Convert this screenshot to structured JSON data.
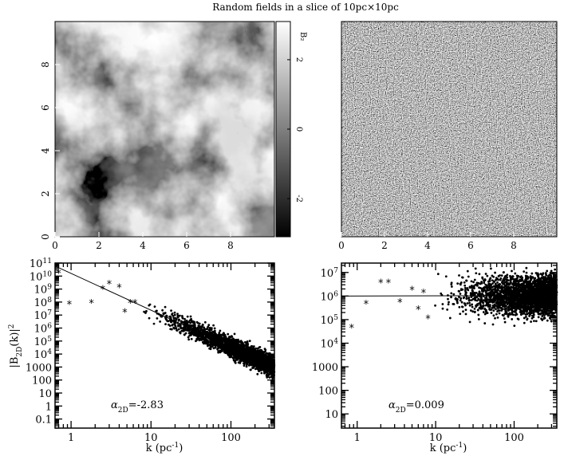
{
  "title": "Random fields in a slice of 10pc×10pc",
  "colorbar": {
    "label": "B₂",
    "ticks": [
      {
        "value": 2,
        "label": "2"
      },
      {
        "value": 0,
        "label": "0"
      },
      {
        "value": -2,
        "label": "-2"
      }
    ],
    "range": [
      -3.1,
      3.1
    ]
  },
  "chart_data": [
    {
      "type": "heatmap",
      "panel": "top-left",
      "description_of_field": "smooth large-scale grayscale random field",
      "xlim": [
        0,
        10
      ],
      "ylim": [
        0,
        10
      ],
      "xticks": [
        "0",
        "2",
        "4",
        "6",
        "8"
      ],
      "yticks": [
        "0",
        "2",
        "4",
        "6",
        "8"
      ],
      "colormap": "gray"
    },
    {
      "type": "heatmap",
      "panel": "top-right",
      "xlim": [
        0,
        10
      ],
      "ylim": [
        0,
        10
      ],
      "xticks": [
        "0",
        "2",
        "4",
        "6",
        "8"
      ],
      "colormap": "gray"
    },
    {
      "type": "scatter",
      "panel": "bottom-left",
      "xlabel": "k (pc",
      "xlabel_sup": "-1",
      "xlabel_end": ")",
      "ylabel": "|B",
      "ylabel_sub": "2D",
      "ylabel_mid": "(k)|",
      "ylabel_sup": "2",
      "xscale": "log",
      "yscale": "log",
      "xlim": [
        0.63,
        350
      ],
      "ylim": [
        0.02,
        100000000000.0
      ],
      "xticks": [
        {
          "value": 1,
          "label": "1"
        },
        {
          "value": 10,
          "label": "10"
        },
        {
          "value": 100,
          "label": "100"
        }
      ],
      "yticks": [
        {
          "value": 100000000000.0,
          "label": "10",
          "sup": "11"
        },
        {
          "value": 10000000000.0,
          "label": "10",
          "sup": "10"
        },
        {
          "value": 1000000000.0,
          "label": "10",
          "sup": "9"
        },
        {
          "value": 100000000.0,
          "label": "10",
          "sup": "8"
        },
        {
          "value": 10000000.0,
          "label": "10",
          "sup": "7"
        },
        {
          "value": 1000000.0,
          "label": "10",
          "sup": "6"
        },
        {
          "value": 100000.0,
          "label": "10",
          "sup": "5"
        },
        {
          "value": 10000.0,
          "label": "10",
          "sup": "4"
        },
        {
          "value": 1000,
          "label": "1000"
        },
        {
          "value": 100,
          "label": "100"
        },
        {
          "value": 10,
          "label": "10"
        },
        {
          "value": 1,
          "label": "1"
        },
        {
          "value": 0.1,
          "label": "0.1"
        }
      ],
      "annotation": {
        "symbol": "α",
        "sub": "2D",
        "text": "=-2.83"
      },
      "fit": {
        "slope": -2.83,
        "amplitude_at_k1": 16000000000.0
      },
      "points_sample": [
        {
          "x": 0.7,
          "y": 20000000000.0
        },
        {
          "x": 0.95,
          "y": 80000000.0
        },
        {
          "x": 1.8,
          "y": 100000000.0
        },
        {
          "x": 2.5,
          "y": 1200000000.0
        },
        {
          "x": 3,
          "y": 3000000000.0
        },
        {
          "x": 4,
          "y": 1500000000.0
        },
        {
          "x": 4.7,
          "y": 20000000.0
        },
        {
          "x": 5.5,
          "y": 100000000.0
        },
        {
          "x": 6.3,
          "y": 100000000.0
        }
      ],
      "cloud": {
        "kmin": 7,
        "kmax": 345,
        "scatter_decades": 1.2
      }
    },
    {
      "type": "scatter",
      "panel": "bottom-right",
      "xlabel": "k (pc",
      "xlabel_sup": "-1",
      "xlabel_end": ")",
      "xscale": "log",
      "yscale": "log",
      "xlim": [
        0.63,
        350
      ],
      "ylim": [
        2.5,
        25000000.0
      ],
      "xticks": [
        {
          "value": 1,
          "label": "1"
        },
        {
          "value": 10,
          "label": "10"
        },
        {
          "value": 100,
          "label": "100"
        }
      ],
      "yticks": [
        {
          "value": 10000000.0,
          "label": "10",
          "sup": "7"
        },
        {
          "value": 1000000.0,
          "label": "10",
          "sup": "6"
        },
        {
          "value": 100000.0,
          "label": "10",
          "sup": "5"
        },
        {
          "value": 10000.0,
          "label": "10",
          "sup": "4"
        },
        {
          "value": 1000,
          "label": "1000"
        },
        {
          "value": 100,
          "label": "100"
        },
        {
          "value": 10,
          "label": "10"
        }
      ],
      "annotation": {
        "symbol": "α",
        "sub": "2D",
        "text": "=0.009"
      },
      "fit": {
        "slope": 0.009,
        "amplitude_at_k1": 1000000.0
      },
      "points_sample": [
        {
          "x": 0.85,
          "y": 50000.0
        },
        {
          "x": 1.3,
          "y": 500000.0
        },
        {
          "x": 2,
          "y": 4000000.0
        },
        {
          "x": 2.5,
          "y": 4000000.0
        },
        {
          "x": 3.5,
          "y": 600000.0
        },
        {
          "x": 5,
          "y": 2000000.0
        },
        {
          "x": 6,
          "y": 300000.0
        },
        {
          "x": 7,
          "y": 1500000.0
        },
        {
          "x": 8,
          "y": 120000.0
        }
      ],
      "cloud": {
        "kmin": 9,
        "kmax": 345,
        "scatter_decades": 1.3
      }
    }
  ]
}
